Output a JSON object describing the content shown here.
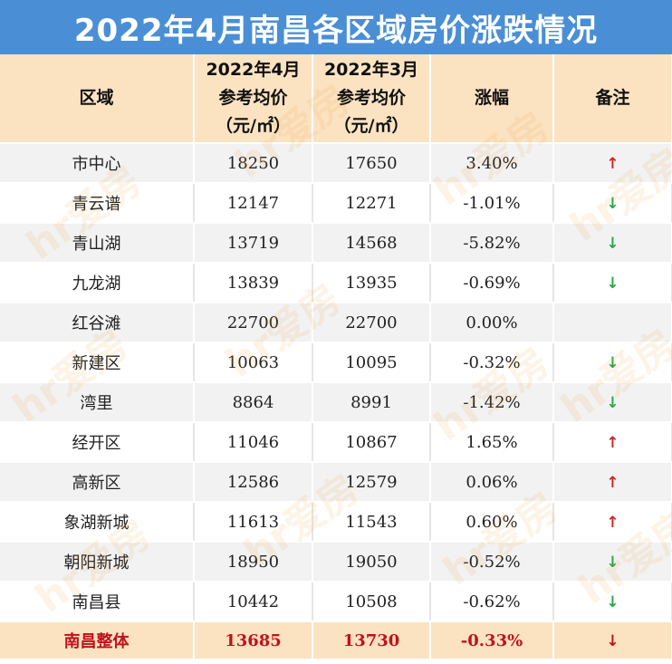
{
  "title": "2022年4月南昌各区域房价涨跌情况",
  "header": {
    "col1": "区域",
    "col2": [
      "2022年4月",
      "参考均价",
      "（元/㎡）"
    ],
    "col3": [
      "2022年3月",
      "参考均价",
      "（元/㎡）"
    ],
    "col4": "涨幅",
    "col5": "备注"
  },
  "rows": [
    {
      "region": "市中心",
      "apr": "18250",
      "mar": "17650",
      "change": "3.40%",
      "trend": "up"
    },
    {
      "region": "青云谱",
      "apr": "12147",
      "mar": "12271",
      "change": "-1.01%",
      "trend": "down"
    },
    {
      "region": "青山湖",
      "apr": "13719",
      "mar": "14568",
      "change": "-5.82%",
      "trend": "down"
    },
    {
      "region": "九龙湖",
      "apr": "13839",
      "mar": "13935",
      "change": "-0.69%",
      "trend": "down"
    },
    {
      "region": "红谷滩",
      "apr": "22700",
      "mar": "22700",
      "change": "0.00%",
      "trend": "none"
    },
    {
      "region": "新建区",
      "apr": "10063",
      "mar": "10095",
      "change": "-0.32%",
      "trend": "down"
    },
    {
      "region": "湾里",
      "apr": "8864",
      "mar": "8991",
      "change": "-1.42%",
      "trend": "down"
    },
    {
      "region": "经开区",
      "apr": "11046",
      "mar": "10867",
      "change": "1.65%",
      "trend": "up"
    },
    {
      "region": "高新区",
      "apr": "12586",
      "mar": "12579",
      "change": "0.06%",
      "trend": "up"
    },
    {
      "region": "象湖新城",
      "apr": "11613",
      "mar": "11543",
      "change": "0.60%",
      "trend": "up"
    },
    {
      "region": "朝阳新城",
      "apr": "18950",
      "mar": "19050",
      "change": "-0.52%",
      "trend": "down"
    },
    {
      "region": "南昌县",
      "apr": "10442",
      "mar": "10508",
      "change": "-0.62%",
      "trend": "down"
    }
  ],
  "total": {
    "region": "南昌整体",
    "apr": "13685",
    "mar": "13730",
    "change": "-0.33%",
    "trend": "down"
  },
  "watermark_text": "hr爱房",
  "colors": {
    "title_bg": "#4a8fd6",
    "header_bg": "#fbe3c2",
    "up_arrow": "#d42424",
    "down_arrow": "#2aa84a",
    "total_text": "#c0121b"
  },
  "icons": {
    "up": "arrow-up-icon",
    "down": "arrow-down-icon"
  }
}
